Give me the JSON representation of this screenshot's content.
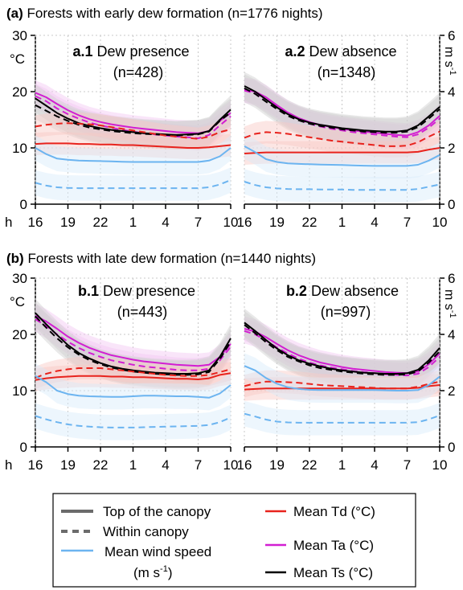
{
  "colors": {
    "td": "#e8231d",
    "ta": "#d21fd2",
    "ts": "#000000",
    "wind": "#6cb4f0",
    "band_td": "#f8c8c4",
    "band_ta": "#f2c6f2",
    "band_ts": "#cfcfcf",
    "band_wind": "#d6eafb",
    "grid": "#c8c8c8"
  },
  "sections": [
    {
      "letter": "(a)",
      "title": "Forests with early dew formation (n=1776 nights)"
    },
    {
      "letter": "(b)",
      "title": "Forests with late dew formation (n=1440 nights)"
    }
  ],
  "axes": {
    "temp_unit": "°C",
    "wind_unit": "m s",
    "wind_unit_sup": "-1",
    "x_prefix": "h",
    "x_ticks": [
      "16",
      "19",
      "22",
      "1",
      "4",
      "7",
      "10"
    ],
    "temp_ticks": [
      "0",
      "10",
      "20",
      "30"
    ],
    "wind_ticks": [
      "0",
      "2",
      "4",
      "6"
    ]
  },
  "legend": {
    "top": "Top of the canopy",
    "within": "Within canopy",
    "wind_line1": "Mean wind speed",
    "wind_unit": "(m s",
    "wind_sup": "-1",
    "wind_close": ")",
    "td": "Mean Td (°C)",
    "ta": "Mean Ta (°C)",
    "ts": "Mean Ts (°C)"
  },
  "chart_data": [
    {
      "id": "a.1",
      "panel_label": "a.1",
      "subtitle": "Dew presence",
      "n_label": "(n=428)",
      "type": "line",
      "x_hours": [
        16,
        17,
        18,
        19,
        20,
        21,
        22,
        23,
        24,
        25,
        26,
        27,
        28,
        29,
        30,
        31,
        32,
        33,
        34
      ],
      "ylim_temp": [
        0,
        30
      ],
      "ylim_wind": [
        0,
        6
      ],
      "series": [
        {
          "var": "ta",
          "style": "top",
          "values": [
            19.8,
            19,
            17.8,
            16.7,
            15.8,
            15.1,
            14.6,
            14.2,
            13.9,
            13.6,
            13.4,
            13.2,
            13.0,
            12.8,
            12.7,
            12.6,
            13.0,
            14.8,
            16.2
          ]
        },
        {
          "var": "ta",
          "style": "within",
          "values": [
            19.2,
            18.3,
            17.0,
            16.0,
            15.2,
            14.5,
            14.0,
            13.6,
            13.2,
            12.9,
            12.6,
            12.4,
            12.2,
            12.0,
            11.9,
            11.7,
            12.3,
            14.0,
            15.6
          ]
        },
        {
          "var": "ts",
          "style": "top",
          "values": [
            18.8,
            17.5,
            16.2,
            15.2,
            14.4,
            13.9,
            13.5,
            13.2,
            13.0,
            12.8,
            12.6,
            12.5,
            12.4,
            12.3,
            12.4,
            12.5,
            13.0,
            15.0,
            16.8
          ]
        },
        {
          "var": "ts",
          "style": "within",
          "values": [
            17.6,
            16.6,
            15.6,
            14.8,
            14.1,
            13.6,
            13.3,
            13.0,
            12.8,
            12.6,
            12.5,
            12.4,
            12.3,
            12.2,
            12.3,
            12.4,
            12.9,
            14.8,
            16.3
          ]
        },
        {
          "var": "td",
          "style": "top",
          "values": [
            10.7,
            10.8,
            10.8,
            10.8,
            10.7,
            10.7,
            10.6,
            10.6,
            10.5,
            10.5,
            10.4,
            10.3,
            10.2,
            10.1,
            10.0,
            10.0,
            10.1,
            10.3,
            10.5
          ]
        },
        {
          "var": "td",
          "style": "within",
          "values": [
            13.8,
            14.1,
            14.3,
            14.4,
            14.3,
            14.2,
            14.0,
            13.7,
            13.4,
            13.1,
            12.8,
            12.5,
            12.2,
            12.0,
            11.8,
            11.6,
            12.0,
            12.8,
            13.3
          ]
        },
        {
          "var": "wind",
          "style": "top",
          "values": [
            2.0,
            1.78,
            1.62,
            1.58,
            1.55,
            1.54,
            1.53,
            1.52,
            1.51,
            1.5,
            1.5,
            1.5,
            1.5,
            1.5,
            1.5,
            1.5,
            1.55,
            1.7,
            2.0
          ]
        },
        {
          "var": "wind",
          "style": "within",
          "values": [
            0.76,
            0.66,
            0.6,
            0.58,
            0.57,
            0.57,
            0.57,
            0.57,
            0.57,
            0.57,
            0.57,
            0.57,
            0.57,
            0.57,
            0.57,
            0.57,
            0.6,
            0.7,
            0.86
          ]
        }
      ]
    },
    {
      "id": "a.2",
      "panel_label": "a.2",
      "subtitle": "Dew absence",
      "n_label": "(n=1348)",
      "type": "line",
      "x_hours": [
        16,
        17,
        18,
        19,
        20,
        21,
        22,
        23,
        24,
        25,
        26,
        27,
        28,
        29,
        30,
        31,
        32,
        33,
        34
      ],
      "ylim_temp": [
        0,
        30
      ],
      "ylim_wind": [
        0,
        6
      ],
      "series": [
        {
          "var": "ta",
          "style": "top",
          "values": [
            20.3,
            20.0,
            19.0,
            17.6,
            16.3,
            15.3,
            14.6,
            14.1,
            13.7,
            13.4,
            13.1,
            12.9,
            12.7,
            12.5,
            12.3,
            12.2,
            12.8,
            14.0,
            15.7
          ]
        },
        {
          "var": "ta",
          "style": "within",
          "values": [
            20.2,
            19.7,
            18.6,
            17.3,
            16.0,
            15.0,
            14.3,
            13.8,
            13.4,
            13.1,
            12.8,
            12.6,
            12.4,
            12.2,
            12.0,
            11.9,
            12.4,
            13.6,
            15.2
          ]
        },
        {
          "var": "ts",
          "style": "top",
          "values": [
            21.0,
            20.0,
            18.6,
            17.2,
            16.0,
            15.1,
            14.5,
            14.1,
            13.8,
            13.5,
            13.3,
            13.1,
            13.0,
            12.9,
            12.9,
            13.1,
            14.0,
            15.6,
            17.3
          ]
        },
        {
          "var": "ts",
          "style": "within",
          "values": [
            20.6,
            19.6,
            18.2,
            16.9,
            15.7,
            14.9,
            14.3,
            13.9,
            13.6,
            13.3,
            13.1,
            12.9,
            12.8,
            12.7,
            12.7,
            12.9,
            13.7,
            15.2,
            16.9
          ]
        },
        {
          "var": "td",
          "style": "top",
          "values": [
            9.0,
            9.1,
            9.2,
            9.2,
            9.2,
            9.2,
            9.2,
            9.2,
            9.2,
            9.2,
            9.2,
            9.2,
            9.2,
            9.2,
            9.2,
            9.2,
            9.3,
            9.7,
            10.0
          ]
        },
        {
          "var": "td",
          "style": "within",
          "values": [
            11.8,
            12.5,
            12.8,
            12.7,
            12.5,
            12.2,
            11.9,
            11.6,
            11.3,
            11.1,
            10.9,
            10.7,
            10.5,
            10.3,
            10.3,
            10.4,
            11.0,
            12.0,
            12.9
          ]
        },
        {
          "var": "wind",
          "style": "top",
          "values": [
            2.06,
            1.85,
            1.6,
            1.5,
            1.45,
            1.43,
            1.42,
            1.41,
            1.4,
            1.39,
            1.38,
            1.37,
            1.36,
            1.36,
            1.36,
            1.36,
            1.4,
            1.55,
            1.75
          ]
        },
        {
          "var": "wind",
          "style": "within",
          "values": [
            0.8,
            0.68,
            0.6,
            0.56,
            0.54,
            0.53,
            0.53,
            0.52,
            0.52,
            0.52,
            0.51,
            0.51,
            0.51,
            0.51,
            0.51,
            0.51,
            0.54,
            0.62,
            0.7
          ]
        }
      ]
    },
    {
      "id": "b.1",
      "panel_label": "b.1",
      "subtitle": "Dew presence",
      "n_label": "(n=443)",
      "type": "line",
      "x_hours": [
        16,
        17,
        18,
        19,
        20,
        21,
        22,
        23,
        24,
        25,
        26,
        27,
        28,
        29,
        30,
        31,
        32,
        33,
        34
      ],
      "ylim_temp": [
        0,
        30
      ],
      "ylim_wind": [
        0,
        6
      ],
      "series": [
        {
          "var": "ta",
          "style": "top",
          "values": [
            23.3,
            22.3,
            21.0,
            19.6,
            18.5,
            17.6,
            16.9,
            16.3,
            15.9,
            15.5,
            15.2,
            15.0,
            14.8,
            14.6,
            14.5,
            14.4,
            14.6,
            16.0,
            18.3
          ]
        },
        {
          "var": "ta",
          "style": "within",
          "values": [
            22.7,
            21.5,
            20.0,
            18.7,
            17.6,
            16.7,
            16.0,
            15.4,
            15.0,
            14.6,
            14.3,
            14.1,
            13.9,
            13.7,
            13.6,
            13.6,
            13.9,
            15.4,
            17.8
          ]
        },
        {
          "var": "ts",
          "style": "top",
          "values": [
            23.8,
            21.8,
            19.9,
            18.1,
            16.7,
            15.7,
            14.9,
            14.3,
            13.9,
            13.6,
            13.4,
            13.2,
            13.1,
            13.0,
            13.0,
            13.1,
            13.6,
            16.0,
            19.3
          ]
        },
        {
          "var": "ts",
          "style": "within",
          "values": [
            23.2,
            21.2,
            19.3,
            17.7,
            16.4,
            15.4,
            14.7,
            14.1,
            13.7,
            13.4,
            13.2,
            13.0,
            12.9,
            12.8,
            12.8,
            12.9,
            13.3,
            15.6,
            18.7
          ]
        },
        {
          "var": "td",
          "style": "top",
          "values": [
            11.9,
            12.2,
            12.4,
            12.5,
            12.6,
            12.6,
            12.6,
            12.5,
            12.5,
            12.4,
            12.4,
            12.3,
            12.2,
            12.1,
            12.1,
            12.0,
            12.2,
            12.8,
            13.1
          ]
        },
        {
          "var": "td",
          "style": "within",
          "values": [
            12.3,
            13.0,
            13.5,
            13.8,
            14.0,
            14.0,
            14.0,
            13.8,
            13.6,
            13.4,
            13.2,
            13.0,
            12.8,
            12.7,
            12.6,
            12.6,
            12.8,
            13.3,
            13.8
          ]
        },
        {
          "var": "wind",
          "style": "top",
          "values": [
            2.52,
            2.3,
            2.0,
            1.88,
            1.82,
            1.8,
            1.79,
            1.78,
            1.78,
            1.8,
            1.82,
            1.82,
            1.81,
            1.8,
            1.8,
            1.78,
            1.75,
            1.9,
            2.2
          ]
        },
        {
          "var": "wind",
          "style": "within",
          "values": [
            1.1,
            0.98,
            0.88,
            0.8,
            0.75,
            0.72,
            0.7,
            0.69,
            0.69,
            0.69,
            0.7,
            0.71,
            0.72,
            0.73,
            0.74,
            0.75,
            0.78,
            0.88,
            1.05
          ]
        }
      ]
    },
    {
      "id": "b.2",
      "panel_label": "b.2",
      "subtitle": "Dew absence",
      "n_label": "(n=997)",
      "type": "line",
      "x_hours": [
        16,
        17,
        18,
        19,
        20,
        21,
        22,
        23,
        24,
        25,
        26,
        27,
        28,
        29,
        30,
        31,
        32,
        33,
        34
      ],
      "ylim_temp": [
        0,
        30
      ],
      "ylim_wind": [
        0,
        6
      ],
      "series": [
        {
          "var": "ta",
          "style": "top",
          "values": [
            21.0,
            20.5,
            19.5,
            18.3,
            17.2,
            16.3,
            15.6,
            15.0,
            14.6,
            14.2,
            13.9,
            13.7,
            13.5,
            13.3,
            13.2,
            13.1,
            13.4,
            14.7,
            16.6
          ]
        },
        {
          "var": "ta",
          "style": "within",
          "values": [
            20.6,
            20.0,
            18.9,
            17.7,
            16.6,
            15.7,
            15.0,
            14.5,
            14.1,
            13.8,
            13.5,
            13.3,
            13.1,
            12.9,
            12.8,
            12.7,
            13.0,
            14.2,
            16.0
          ]
        },
        {
          "var": "ts",
          "style": "top",
          "values": [
            22.1,
            20.6,
            19.0,
            17.5,
            16.3,
            15.4,
            14.8,
            14.3,
            13.9,
            13.6,
            13.4,
            13.2,
            13.1,
            13.0,
            13.0,
            13.1,
            13.7,
            15.4,
            17.6
          ]
        },
        {
          "var": "ts",
          "style": "within",
          "values": [
            21.7,
            20.2,
            18.6,
            17.2,
            16.0,
            15.2,
            14.5,
            14.0,
            13.7,
            13.4,
            13.2,
            13.0,
            12.9,
            12.8,
            12.8,
            12.9,
            13.4,
            15.0,
            17.0
          ]
        },
        {
          "var": "td",
          "style": "top",
          "values": [
            10.2,
            10.3,
            10.4,
            10.4,
            10.4,
            10.4,
            10.4,
            10.4,
            10.4,
            10.4,
            10.4,
            10.4,
            10.4,
            10.4,
            10.4,
            10.4,
            10.5,
            10.8,
            11.0
          ]
        },
        {
          "var": "td",
          "style": "within",
          "values": [
            10.8,
            11.3,
            11.6,
            11.6,
            11.5,
            11.4,
            11.2,
            11.0,
            10.9,
            10.8,
            10.7,
            10.6,
            10.5,
            10.4,
            10.4,
            10.4,
            10.7,
            11.2,
            11.6
          ]
        },
        {
          "var": "wind",
          "style": "top",
          "values": [
            2.88,
            2.72,
            2.45,
            2.25,
            2.12,
            2.06,
            2.03,
            2.02,
            2.02,
            2.02,
            2.02,
            2.02,
            2.02,
            2.01,
            2.0,
            2.0,
            2.02,
            2.2,
            2.5
          ]
        },
        {
          "var": "wind",
          "style": "within",
          "values": [
            1.18,
            1.08,
            0.97,
            0.9,
            0.87,
            0.86,
            0.86,
            0.86,
            0.86,
            0.86,
            0.86,
            0.86,
            0.86,
            0.86,
            0.86,
            0.86,
            0.88,
            0.98,
            1.12
          ]
        }
      ]
    }
  ]
}
